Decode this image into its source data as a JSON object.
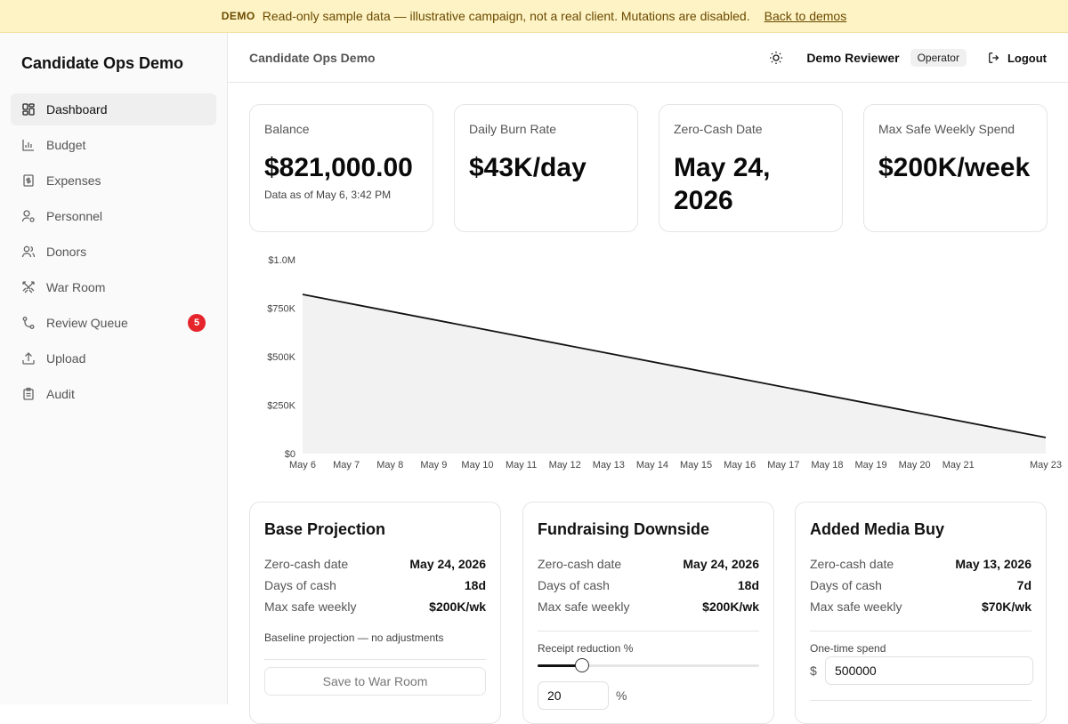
{
  "banner": {
    "tag": "DEMO",
    "message": "Read-only sample data — illustrative campaign, not a real client. Mutations are disabled.",
    "link": "Back to demos"
  },
  "sidebar": {
    "brand": "Candidate Ops Demo",
    "items": [
      {
        "label": "Dashboard",
        "icon": "dashboard-icon",
        "active": true
      },
      {
        "label": "Budget",
        "icon": "bar-chart-icon"
      },
      {
        "label": "Expenses",
        "icon": "receipt-icon"
      },
      {
        "label": "Personnel",
        "icon": "user-cog-icon"
      },
      {
        "label": "Donors",
        "icon": "users-icon"
      },
      {
        "label": "War Room",
        "icon": "swords-icon"
      },
      {
        "label": "Review Queue",
        "icon": "git-branch-icon",
        "badge": "5"
      },
      {
        "label": "Upload",
        "icon": "upload-icon"
      },
      {
        "label": "Audit",
        "icon": "clipboard-icon"
      }
    ]
  },
  "header": {
    "title": "Candidate Ops Demo",
    "user": "Demo Reviewer",
    "role": "Operator",
    "logout": "Logout"
  },
  "kpis": [
    {
      "label": "Balance",
      "value": "$821,000.00",
      "sub": "Data as of May 6, 3:42 PM"
    },
    {
      "label": "Daily Burn Rate",
      "value": "$43K/day"
    },
    {
      "label": "Zero-Cash Date",
      "value_line1": "May 24,",
      "value_line2": "2026"
    },
    {
      "label": "Max Safe Weekly Spend",
      "value": "$200K/week"
    }
  ],
  "chart_data": {
    "type": "area",
    "x": [
      "May 6",
      "May 7",
      "May 8",
      "May 9",
      "May 10",
      "May 11",
      "May 12",
      "May 13",
      "May 14",
      "May 15",
      "May 16",
      "May 17",
      "May 18",
      "May 19",
      "May 20",
      "May 21",
      "May 23"
    ],
    "y_ticks": [
      "$0",
      "$250K",
      "$500K",
      "$750K",
      "$1.0M"
    ],
    "ylim": [
      0,
      1000000
    ],
    "series": [
      {
        "points": [
          [
            "May 6",
            821000
          ],
          [
            "May 23",
            83000
          ]
        ]
      }
    ],
    "grid": false,
    "colors": {
      "line": "#111111",
      "fill": "#f2f2f2"
    }
  },
  "scenarios": [
    {
      "title": "Base Projection",
      "rows": [
        {
          "k": "Zero-cash date",
          "v": "May 24, 2026"
        },
        {
          "k": "Days of cash",
          "v": "18d"
        },
        {
          "k": "Max safe weekly",
          "v": "$200K/wk"
        }
      ],
      "note": "Baseline projection — no adjustments",
      "button": "Save to War Room"
    },
    {
      "title": "Fundraising Downside",
      "rows": [
        {
          "k": "Zero-cash date",
          "v": "May 24, 2026"
        },
        {
          "k": "Days of cash",
          "v": "18d"
        },
        {
          "k": "Max safe weekly",
          "v": "$200K/wk"
        }
      ],
      "control_label": "Receipt reduction %",
      "slider_value": 20,
      "input_value": "20",
      "suffix": "%"
    },
    {
      "title": "Added Media Buy",
      "rows": [
        {
          "k": "Zero-cash date",
          "v": "May 13, 2026"
        },
        {
          "k": "Days of cash",
          "v": "7d"
        },
        {
          "k": "Max safe weekly",
          "v": "$70K/wk"
        }
      ],
      "control_label": "One-time spend",
      "prefix": "$",
      "input_value": "500000"
    }
  ]
}
